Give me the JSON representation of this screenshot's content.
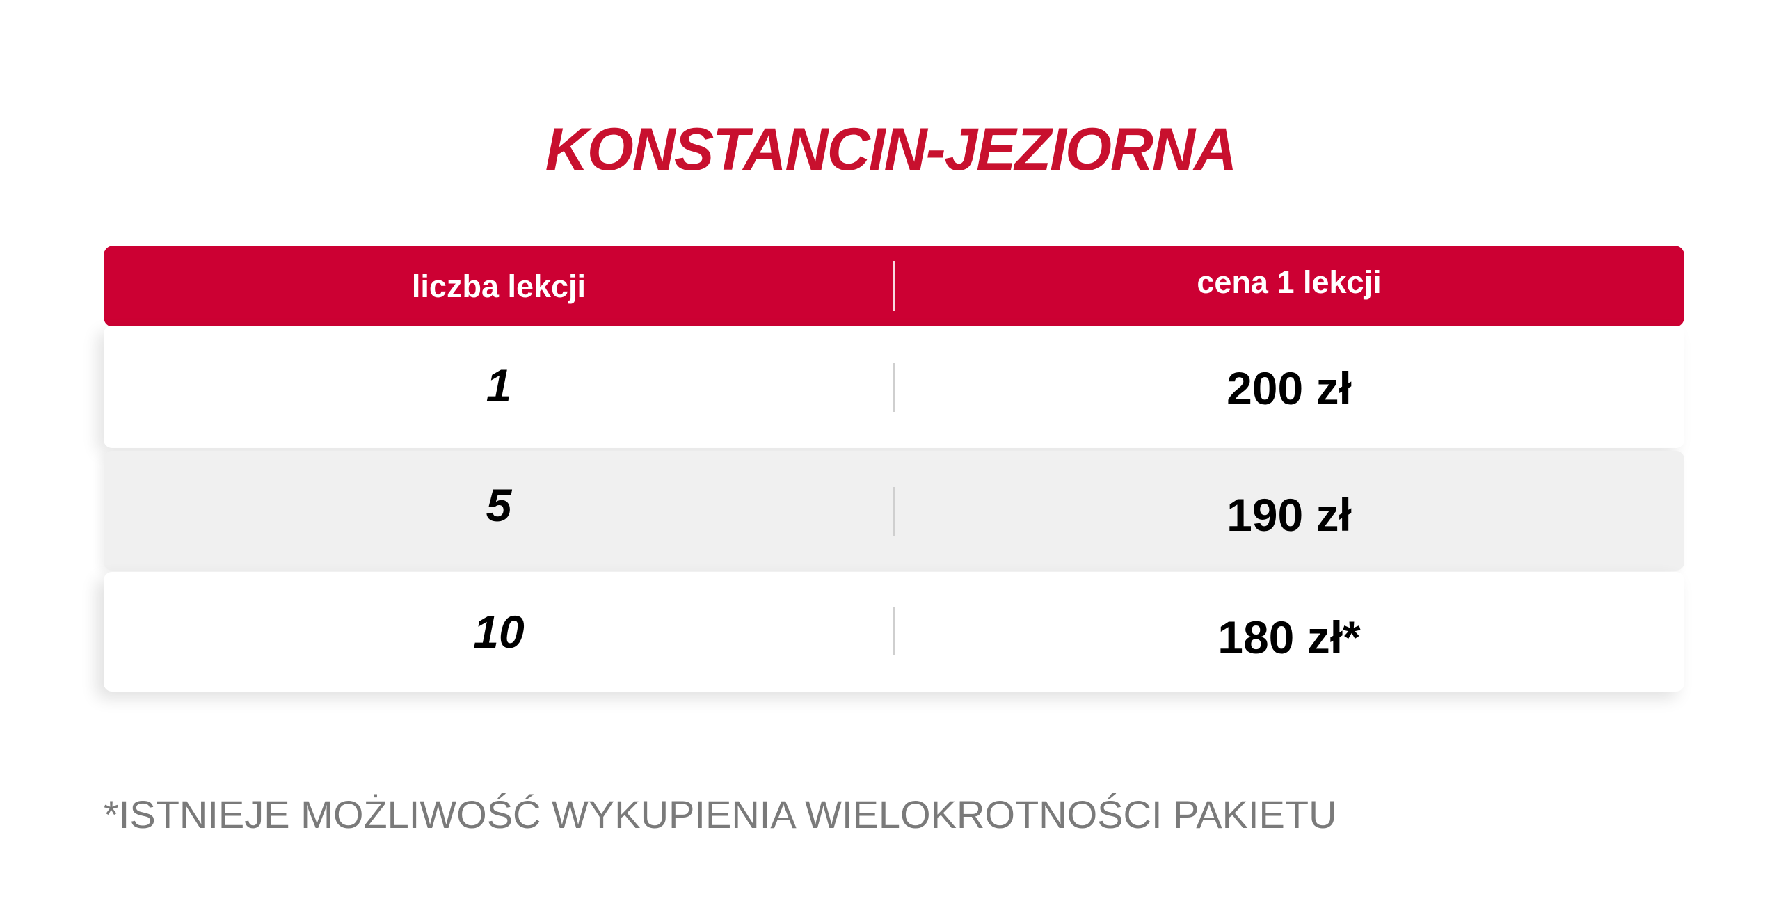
{
  "title": "KONSTANCIN-JEZIORNA",
  "table": {
    "headers": [
      "liczba lekcji",
      "cena 1 lekcji"
    ],
    "rows": [
      {
        "lessons": "1",
        "price": "200 zł"
      },
      {
        "lessons": "5",
        "price": "190 zł"
      },
      {
        "lessons": "10",
        "price": "180 zł*"
      }
    ]
  },
  "footnote": "*ISTNIEJE MOŻLIWOŚĆ WYKUPIENIA WIELOKROTNOŚCI PAKIETU",
  "colors": {
    "accent": "#cc0033",
    "title": "#c8102e",
    "footnote": "#7a7a7a",
    "row_alt": "#f0f0f0"
  }
}
